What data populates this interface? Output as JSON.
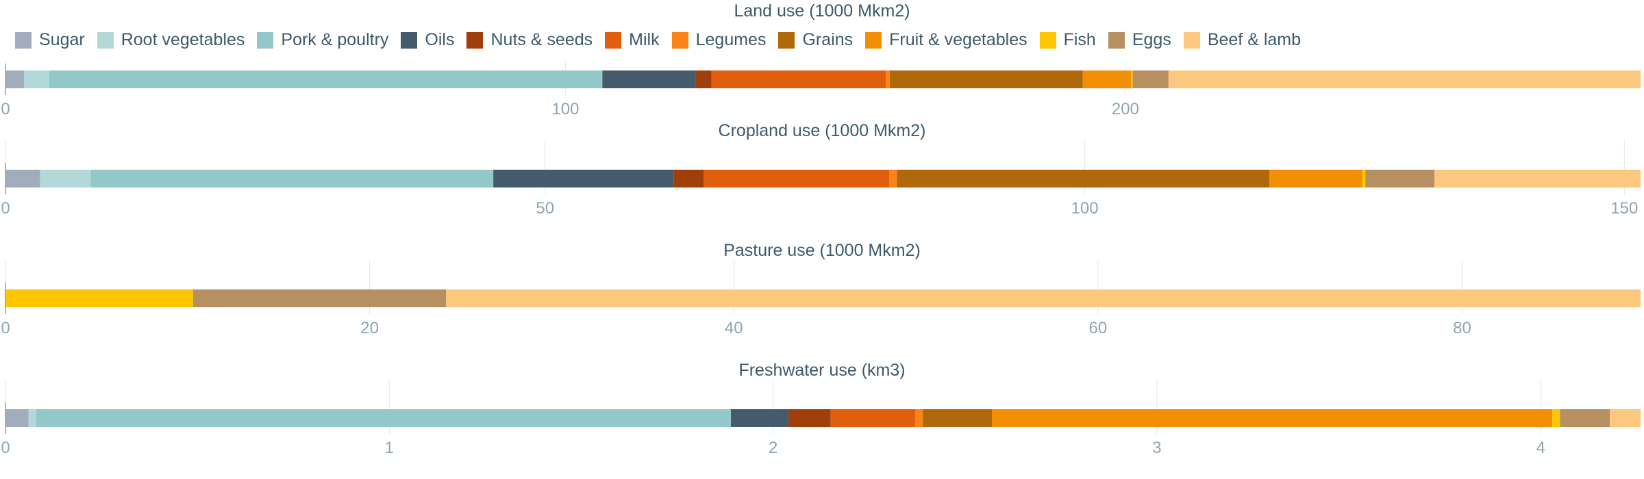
{
  "chart_data": {
    "type": "bar",
    "orientation": "horizontal",
    "stacked": true,
    "grid": true,
    "legend_position": "top",
    "categories": [
      "Sugar",
      "Root vegetables",
      "Pork & poultry",
      "Oils",
      "Nuts & seeds",
      "Milk",
      "Legumes",
      "Grains",
      "Fruit & vegetables",
      "Fish",
      "Eggs",
      "Beef & lamb"
    ],
    "colors": [
      "#a1adba",
      "#b2d8d8",
      "#93c8c8",
      "#455a6b",
      "#a13f0b",
      "#e05e0c",
      "#fa8418",
      "#b0680a",
      "#f38f05",
      "#fec601",
      "#b69060",
      "#fcc87e"
    ],
    "panels": [
      {
        "title": "Land use (1000 Mkm2)",
        "xlim": [
          0,
          292
        ],
        "ticks": [
          0,
          100,
          200
        ],
        "values": [
          3.3,
          4.5,
          98.8,
          16.7,
          2.8,
          31.1,
          0.7,
          34.5,
          8.6,
          0.3,
          6.4,
          84.3
        ]
      },
      {
        "title": "Cropland use (1000 Mkm2)",
        "xlim": [
          0,
          151.5
        ],
        "ticks": [
          0,
          50,
          100,
          150
        ],
        "values": [
          3.2,
          4.7,
          37.3,
          16.7,
          2.8,
          17.2,
          0.7,
          34.5,
          8.6,
          0.3,
          6.4,
          19.1
        ]
      },
      {
        "title": "Pasture use (1000 Mkm2)",
        "xlim": [
          0,
          89.8
        ],
        "ticks": [
          0,
          20,
          40,
          60,
          80
        ],
        "values": [
          0,
          0,
          0,
          0,
          0,
          0,
          0,
          0,
          0,
          10.3,
          13.9,
          65.6
        ]
      },
      {
        "title": "Freshwater use (km3)",
        "xlim": [
          0,
          4.26
        ],
        "ticks": [
          0,
          1,
          2,
          3,
          4
        ],
        "values": [
          0.06,
          0.02,
          1.81,
          0.15,
          0.11,
          0.22,
          0.02,
          0.18,
          1.46,
          0.02,
          0.13,
          0.08
        ]
      }
    ]
  }
}
